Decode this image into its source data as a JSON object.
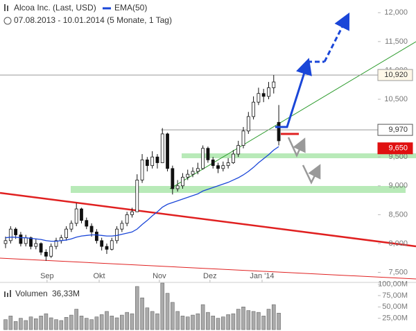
{
  "chart_data": {
    "type": "candlestick",
    "title": "Alcoa Inc. (Last, USD)",
    "subtitle": "07.08.2013 - 10.01.2014 (5 Monate, 1 Tag)",
    "xlim": [
      -1.1,
      72.9
    ],
    "xticks": [
      {
        "value": 8.2,
        "label": "Sep"
      },
      {
        "value": 18.5,
        "label": "Okt"
      },
      {
        "value": 30.4,
        "label": "Nov"
      },
      {
        "value": 40.4,
        "label": "Dez"
      },
      {
        "value": 50.7,
        "label": "Jan '14"
      }
    ],
    "ylim": [
      7.35,
      12.22
    ],
    "yticks": [
      {
        "value": 7.5,
        "label": "7,500"
      },
      {
        "value": 8,
        "label": "8,000"
      },
      {
        "value": 8.5,
        "label": "8,500"
      },
      {
        "value": 9,
        "label": "9,000"
      },
      {
        "value": 9.5,
        "label": "9,500"
      },
      {
        "value": 10.5,
        "label": "10,500"
      },
      {
        "value": 11,
        "label": "11,000"
      },
      {
        "value": 11.5,
        "label": "11,500"
      },
      {
        "value": 12,
        "label": "12,000"
      }
    ],
    "candles": [
      [
        8.0,
        8.12,
        7.92,
        8.05
      ],
      [
        8.05,
        8.3,
        8.0,
        8.25
      ],
      [
        8.25,
        8.28,
        8.08,
        8.15
      ],
      [
        8.15,
        8.2,
        7.95,
        8.0
      ],
      [
        8.0,
        8.15,
        7.95,
        8.1
      ],
      [
        8.1,
        8.12,
        7.9,
        7.95
      ],
      [
        7.95,
        8.08,
        7.9,
        8.0
      ],
      [
        8.0,
        8.02,
        7.8,
        7.85
      ],
      [
        7.85,
        7.9,
        7.7,
        7.78
      ],
      [
        7.78,
        8.0,
        7.75,
        7.95
      ],
      [
        7.95,
        8.1,
        7.9,
        8.05
      ],
      [
        8.05,
        8.15,
        8.0,
        8.1
      ],
      [
        8.1,
        8.3,
        8.05,
        8.25
      ],
      [
        8.25,
        8.4,
        8.2,
        8.35
      ],
      [
        8.35,
        8.7,
        8.3,
        8.6
      ],
      [
        8.6,
        8.62,
        8.35,
        8.4
      ],
      [
        8.4,
        8.45,
        8.25,
        8.3
      ],
      [
        8.3,
        8.35,
        8.12,
        8.2
      ],
      [
        8.2,
        8.25,
        8.0,
        8.05
      ],
      [
        8.05,
        8.1,
        7.88,
        7.95
      ],
      [
        7.95,
        8.0,
        7.82,
        7.9
      ],
      [
        7.9,
        8.1,
        7.88,
        8.05
      ],
      [
        8.05,
        8.3,
        8.0,
        8.25
      ],
      [
        8.25,
        8.4,
        8.2,
        8.35
      ],
      [
        8.35,
        8.55,
        8.3,
        8.5
      ],
      [
        8.5,
        8.62,
        8.45,
        8.55
      ],
      [
        8.55,
        9.2,
        8.55,
        9.1
      ],
      [
        9.1,
        9.55,
        9.05,
        9.45
      ],
      [
        9.45,
        9.5,
        9.25,
        9.35
      ],
      [
        9.35,
        9.6,
        9.3,
        9.5
      ],
      [
        9.5,
        9.55,
        9.3,
        9.4
      ],
      [
        9.4,
        10.0,
        9.4,
        9.9
      ],
      [
        9.9,
        9.92,
        9.25,
        9.3
      ],
      [
        9.3,
        9.35,
        8.85,
        8.95
      ],
      [
        8.95,
        9.1,
        8.9,
        9.0
      ],
      [
        9.0,
        9.22,
        8.95,
        9.15
      ],
      [
        9.15,
        9.28,
        9.1,
        9.2
      ],
      [
        9.2,
        9.32,
        9.15,
        9.25
      ],
      [
        9.25,
        9.4,
        9.2,
        9.3
      ],
      [
        9.3,
        9.7,
        9.28,
        9.65
      ],
      [
        9.65,
        9.68,
        9.4,
        9.45
      ],
      [
        9.45,
        9.5,
        9.3,
        9.35
      ],
      [
        9.35,
        9.4,
        9.22,
        9.3
      ],
      [
        9.3,
        9.42,
        9.25,
        9.35
      ],
      [
        9.35,
        9.48,
        9.3,
        9.4
      ],
      [
        9.4,
        9.62,
        9.38,
        9.55
      ],
      [
        9.55,
        9.78,
        9.5,
        9.7
      ],
      [
        9.7,
        10.02,
        9.65,
        9.95
      ],
      [
        9.95,
        10.28,
        9.9,
        10.2
      ],
      [
        10.2,
        10.55,
        10.15,
        10.45
      ],
      [
        10.45,
        10.7,
        10.4,
        10.6
      ],
      [
        10.6,
        10.68,
        10.45,
        10.55
      ],
      [
        10.55,
        10.8,
        10.5,
        10.7
      ],
      [
        10.7,
        10.92,
        10.6,
        10.8
      ],
      [
        10.1,
        10.4,
        9.7,
        9.78
      ]
    ],
    "series": [
      {
        "name": "EMA(50)",
        "color": "#1a46d8",
        "values": [
          8.1,
          8.11,
          8.11,
          8.1,
          8.1,
          8.09,
          8.08,
          8.07,
          8.05,
          8.04,
          8.04,
          8.05,
          8.06,
          8.08,
          8.11,
          8.13,
          8.14,
          8.15,
          8.15,
          8.14,
          8.13,
          8.13,
          8.14,
          8.16,
          8.18,
          8.2,
          8.25,
          8.33,
          8.4,
          8.48,
          8.55,
          8.63,
          8.68,
          8.71,
          8.74,
          8.77,
          8.8,
          8.83,
          8.86,
          8.91,
          8.94,
          8.97,
          9.0,
          9.03,
          9.06,
          9.1,
          9.14,
          9.19,
          9.25,
          9.32,
          9.4,
          9.47,
          9.54,
          9.62,
          9.68
        ]
      }
    ],
    "price_labels": [
      {
        "value": 10.92,
        "label": "10,920"
      },
      {
        "value": 9.97,
        "label": "9,970"
      },
      {
        "value": 9.65,
        "label": "9,650"
      }
    ],
    "volume_title": "Volumen",
    "volume_last": {
      "value": 36.33,
      "label": "36,33M"
    },
    "volume_ylim": [
      0,
      104
    ],
    "volume_yticks": [
      {
        "value": 25,
        "label": "25,00M"
      },
      {
        "value": 50,
        "label": "50,00M"
      },
      {
        "value": 75,
        "label": "75,00M"
      },
      {
        "value": 100,
        "label": "100,00M"
      }
    ],
    "volume": [
      22,
      30,
      18,
      25,
      20,
      28,
      24,
      30,
      35,
      26,
      22,
      20,
      27,
      32,
      45,
      30,
      25,
      22,
      28,
      33,
      40,
      30,
      26,
      32,
      38,
      35,
      95,
      70,
      48,
      40,
      35,
      110,
      80,
      60,
      40,
      30,
      28,
      32,
      35,
      55,
      38,
      30,
      25,
      28,
      33,
      35,
      45,
      50,
      42,
      40,
      38,
      30,
      45,
      55,
      36.33
    ]
  }
}
